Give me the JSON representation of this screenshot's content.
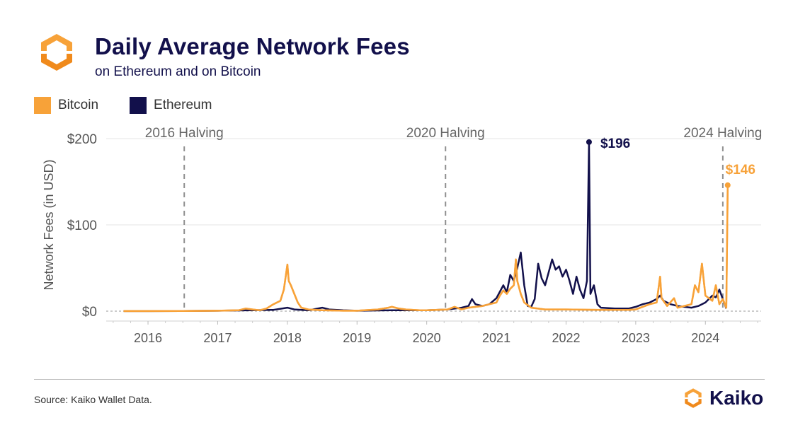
{
  "header": {
    "title": "Daily Average Network Fees",
    "subtitle": "on Ethereum and on Bitcoin"
  },
  "legend": [
    {
      "label": "Bitcoin",
      "color": "#f7a239"
    },
    {
      "label": "Ethereum",
      "color": "#12104b"
    }
  ],
  "footer": {
    "source": "Source: Kaiko Wallet Data.",
    "brand": "Kaiko"
  },
  "colors": {
    "bitcoin": "#f7a239",
    "ethereum": "#12104b",
    "brand_orange": "#f7a239"
  },
  "chart_data": {
    "type": "line",
    "title": "Daily Average Network Fees",
    "subtitle": "on Ethereum and on Bitcoin",
    "xlabel": "",
    "ylabel": "Network Fees (in USD)",
    "xlim": [
      2015.4,
      2024.8
    ],
    "ylim": [
      0,
      200
    ],
    "x_ticks": [
      2016,
      2017,
      2018,
      2019,
      2020,
      2021,
      2022,
      2023,
      2024
    ],
    "y_ticks": [
      {
        "value": 0,
        "label": "$0"
      },
      {
        "value": 100,
        "label": "$100"
      },
      {
        "value": 200,
        "label": "$200"
      }
    ],
    "grid": "horizontal",
    "legend_position": "top-left",
    "series": [
      {
        "name": "Bitcoin",
        "color": "#f7a239",
        "points": [
          [
            2015.65,
            0.1
          ],
          [
            2016.0,
            0.1
          ],
          [
            2016.5,
            0.2
          ],
          [
            2017.0,
            0.5
          ],
          [
            2017.3,
            1
          ],
          [
            2017.4,
            3
          ],
          [
            2017.5,
            2
          ],
          [
            2017.6,
            1
          ],
          [
            2017.7,
            3
          ],
          [
            2017.8,
            8
          ],
          [
            2017.9,
            12
          ],
          [
            2017.95,
            25
          ],
          [
            2018.0,
            54
          ],
          [
            2018.02,
            35
          ],
          [
            2018.05,
            30
          ],
          [
            2018.1,
            20
          ],
          [
            2018.15,
            10
          ],
          [
            2018.2,
            4
          ],
          [
            2018.3,
            2
          ],
          [
            2018.5,
            1
          ],
          [
            2018.8,
            0.5
          ],
          [
            2019.0,
            0.5
          ],
          [
            2019.3,
            2
          ],
          [
            2019.45,
            4
          ],
          [
            2019.5,
            5
          ],
          [
            2019.6,
            3
          ],
          [
            2019.7,
            2
          ],
          [
            2019.9,
            1
          ],
          [
            2020.0,
            1
          ],
          [
            2020.3,
            2
          ],
          [
            2020.4,
            5
          ],
          [
            2020.5,
            2
          ],
          [
            2020.6,
            4
          ],
          [
            2020.8,
            6
          ],
          [
            2020.9,
            8
          ],
          [
            2021.0,
            10
          ],
          [
            2021.05,
            18
          ],
          [
            2021.1,
            24
          ],
          [
            2021.15,
            20
          ],
          [
            2021.2,
            26
          ],
          [
            2021.25,
            30
          ],
          [
            2021.28,
            60
          ],
          [
            2021.3,
            35
          ],
          [
            2021.35,
            20
          ],
          [
            2021.4,
            10
          ],
          [
            2021.5,
            4
          ],
          [
            2021.7,
            2
          ],
          [
            2022.0,
            2
          ],
          [
            2022.5,
            1.5
          ],
          [
            2022.9,
            1.5
          ],
          [
            2023.0,
            2
          ],
          [
            2023.2,
            8
          ],
          [
            2023.3,
            10
          ],
          [
            2023.35,
            40
          ],
          [
            2023.37,
            15
          ],
          [
            2023.45,
            6
          ],
          [
            2023.55,
            15
          ],
          [
            2023.6,
            4
          ],
          [
            2023.8,
            8
          ],
          [
            2023.85,
            30
          ],
          [
            2023.9,
            22
          ],
          [
            2023.95,
            55
          ],
          [
            2024.0,
            18
          ],
          [
            2024.1,
            12
          ],
          [
            2024.15,
            30
          ],
          [
            2024.2,
            8
          ],
          [
            2024.25,
            14
          ],
          [
            2024.3,
            4
          ],
          [
            2024.32,
            146
          ]
        ],
        "annotation": {
          "x": 2024.32,
          "y": 146,
          "label": "$146"
        }
      },
      {
        "name": "Ethereum",
        "color": "#12104b",
        "points": [
          [
            2015.65,
            0.1
          ],
          [
            2016.0,
            0.1
          ],
          [
            2016.5,
            0.2
          ],
          [
            2017.0,
            0.5
          ],
          [
            2017.5,
            1
          ],
          [
            2017.8,
            1.5
          ],
          [
            2018.0,
            4
          ],
          [
            2018.1,
            2
          ],
          [
            2018.3,
            1
          ],
          [
            2018.5,
            4
          ],
          [
            2018.6,
            2
          ],
          [
            2018.8,
            1
          ],
          [
            2019.0,
            0.5
          ],
          [
            2019.5,
            1
          ],
          [
            2019.8,
            1
          ],
          [
            2020.0,
            1
          ],
          [
            2020.3,
            2
          ],
          [
            2020.5,
            4
          ],
          [
            2020.6,
            6
          ],
          [
            2020.65,
            14
          ],
          [
            2020.7,
            8
          ],
          [
            2020.8,
            6
          ],
          [
            2020.9,
            8
          ],
          [
            2021.0,
            15
          ],
          [
            2021.1,
            30
          ],
          [
            2021.15,
            22
          ],
          [
            2021.2,
            42
          ],
          [
            2021.25,
            35
          ],
          [
            2021.3,
            50
          ],
          [
            2021.35,
            68
          ],
          [
            2021.4,
            30
          ],
          [
            2021.45,
            6
          ],
          [
            2021.5,
            5
          ],
          [
            2021.55,
            14
          ],
          [
            2021.6,
            55
          ],
          [
            2021.65,
            38
          ],
          [
            2021.7,
            30
          ],
          [
            2021.75,
            45
          ],
          [
            2021.8,
            60
          ],
          [
            2021.85,
            48
          ],
          [
            2021.9,
            52
          ],
          [
            2021.95,
            40
          ],
          [
            2022.0,
            48
          ],
          [
            2022.05,
            35
          ],
          [
            2022.1,
            20
          ],
          [
            2022.15,
            40
          ],
          [
            2022.2,
            25
          ],
          [
            2022.25,
            15
          ],
          [
            2022.3,
            35
          ],
          [
            2022.33,
            196
          ],
          [
            2022.35,
            20
          ],
          [
            2022.4,
            30
          ],
          [
            2022.45,
            8
          ],
          [
            2022.5,
            4
          ],
          [
            2022.7,
            3
          ],
          [
            2022.9,
            3
          ],
          [
            2023.0,
            5
          ],
          [
            2023.1,
            8
          ],
          [
            2023.2,
            10
          ],
          [
            2023.3,
            14
          ],
          [
            2023.35,
            18
          ],
          [
            2023.4,
            12
          ],
          [
            2023.5,
            8
          ],
          [
            2023.6,
            6
          ],
          [
            2023.8,
            4
          ],
          [
            2023.9,
            6
          ],
          [
            2024.0,
            10
          ],
          [
            2024.1,
            18
          ],
          [
            2024.15,
            16
          ],
          [
            2024.2,
            25
          ],
          [
            2024.25,
            14
          ],
          [
            2024.3,
            3
          ]
        ],
        "annotation": {
          "x": 2022.33,
          "y": 196,
          "label": "$196"
        }
      }
    ],
    "reference_lines": [
      {
        "x": 2016.52,
        "label": "2016 Halving"
      },
      {
        "x": 2020.27,
        "label": "2020 Halving"
      },
      {
        "x": 2024.25,
        "label": "2024 Halving"
      }
    ]
  }
}
